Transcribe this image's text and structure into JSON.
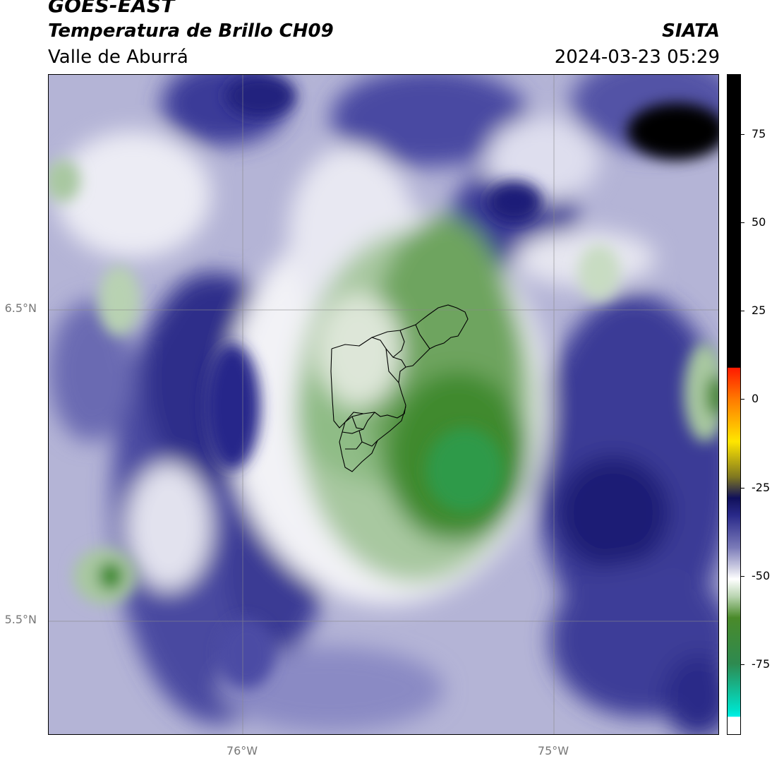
{
  "header": {
    "title": "GOES-EAST",
    "subtitle": "Temperatura de Brillo CH09",
    "region": "Valle de Aburrá",
    "organization": "SIATA",
    "timestamp": "2024-03-23 05:29"
  },
  "map": {
    "lat_labels": [
      "6.5°N",
      "5.5°N"
    ],
    "lon_labels": [
      "76°W",
      "75°W"
    ],
    "colors": {
      "deep_blue": "#1a1a7a",
      "mid_blue": "#5a5aaa",
      "light_blue": "#b8b8d8",
      "white": "#f4f4f8",
      "light_green": "#9cc79a",
      "green": "#4a8a32",
      "teal_green": "#2e9a4a",
      "boundary": "#000000",
      "grid": "#8a8a8a"
    }
  },
  "colorbar": {
    "tick_labels": [
      "75",
      "50",
      "25",
      "0",
      "-25",
      "-50",
      "-75"
    ],
    "tick_values": [
      75,
      50,
      25,
      0,
      -25,
      -50,
      -75
    ],
    "range": [
      -95,
      92
    ],
    "stops": [
      {
        "value": 92,
        "color": "#000000"
      },
      {
        "value": 9,
        "color": "#000000"
      },
      {
        "value": 8.9,
        "color": "#ff1a00"
      },
      {
        "value": 0,
        "color": "#ff7a00"
      },
      {
        "value": -12,
        "color": "#ffe600"
      },
      {
        "value": -22,
        "color": "#807820"
      },
      {
        "value": -28,
        "color": "#10105a"
      },
      {
        "value": -33,
        "color": "#2a2a8a"
      },
      {
        "value": -42,
        "color": "#7a7ab8"
      },
      {
        "value": -48,
        "color": "#d0d0e4"
      },
      {
        "value": -51,
        "color": "#ffffff"
      },
      {
        "value": -56,
        "color": "#b8d4b0"
      },
      {
        "value": -62,
        "color": "#4a8a2a"
      },
      {
        "value": -75,
        "color": "#2e8a50"
      },
      {
        "value": -88,
        "color": "#00e0c8"
      },
      {
        "value": -90,
        "color": "#00f0e8"
      },
      {
        "value": -90.1,
        "color": "#ffffff"
      },
      {
        "value": -95,
        "color": "#ffffff"
      }
    ]
  }
}
